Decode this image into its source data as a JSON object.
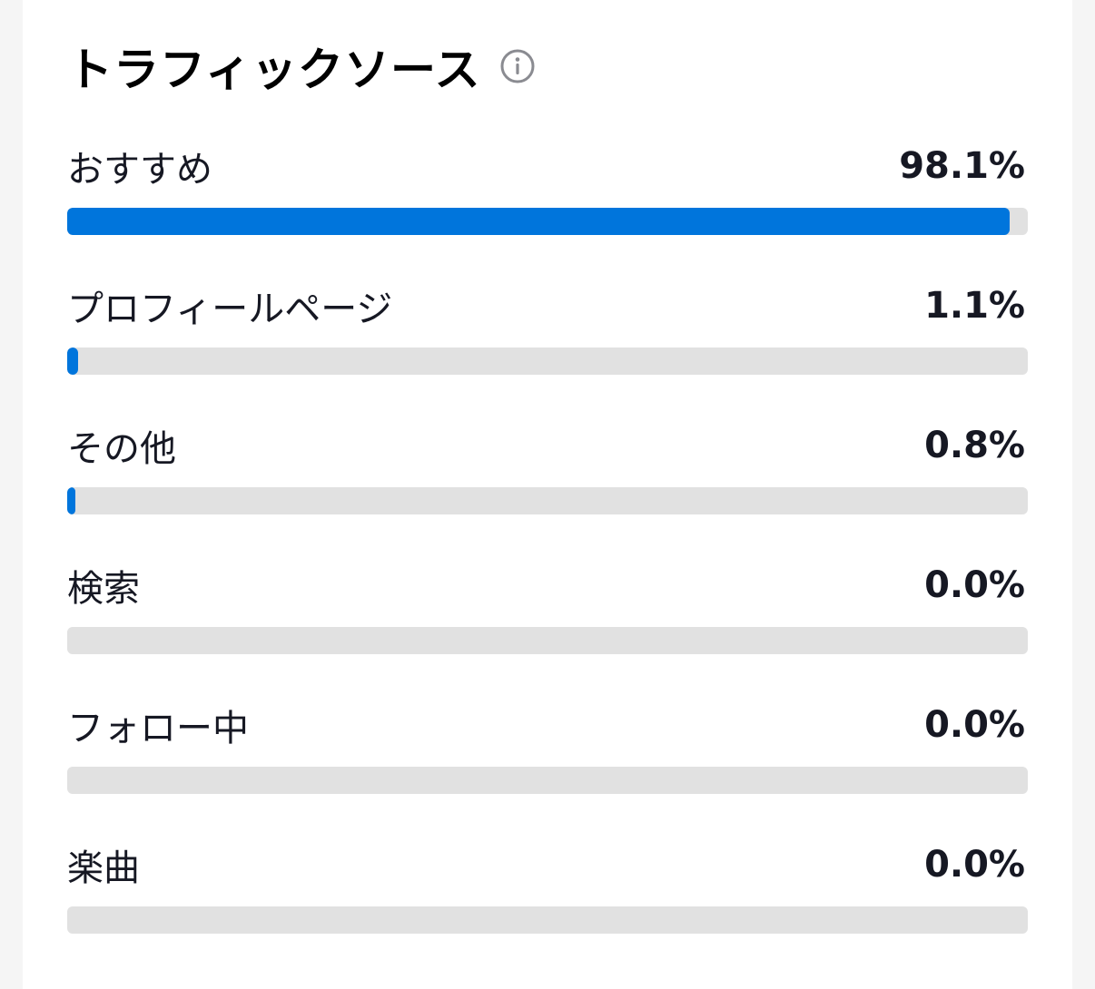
{
  "header": {
    "title": "トラフィックソース",
    "info_icon": "info-circle-icon"
  },
  "colors": {
    "bar_fill": "#0075dc",
    "bar_track": "#e1e1e1"
  },
  "sources": [
    {
      "label": "おすすめ",
      "value_text": "98.1%",
      "percent": 98.1
    },
    {
      "label": "プロフィールページ",
      "value_text": "1.1%",
      "percent": 1.1
    },
    {
      "label": "その他",
      "value_text": "0.8%",
      "percent": 0.8
    },
    {
      "label": "検索",
      "value_text": "0.0%",
      "percent": 0.0
    },
    {
      "label": "フォロー中",
      "value_text": "0.0%",
      "percent": 0.0
    },
    {
      "label": "楽曲",
      "value_text": "0.0%",
      "percent": 0.0
    }
  ]
}
